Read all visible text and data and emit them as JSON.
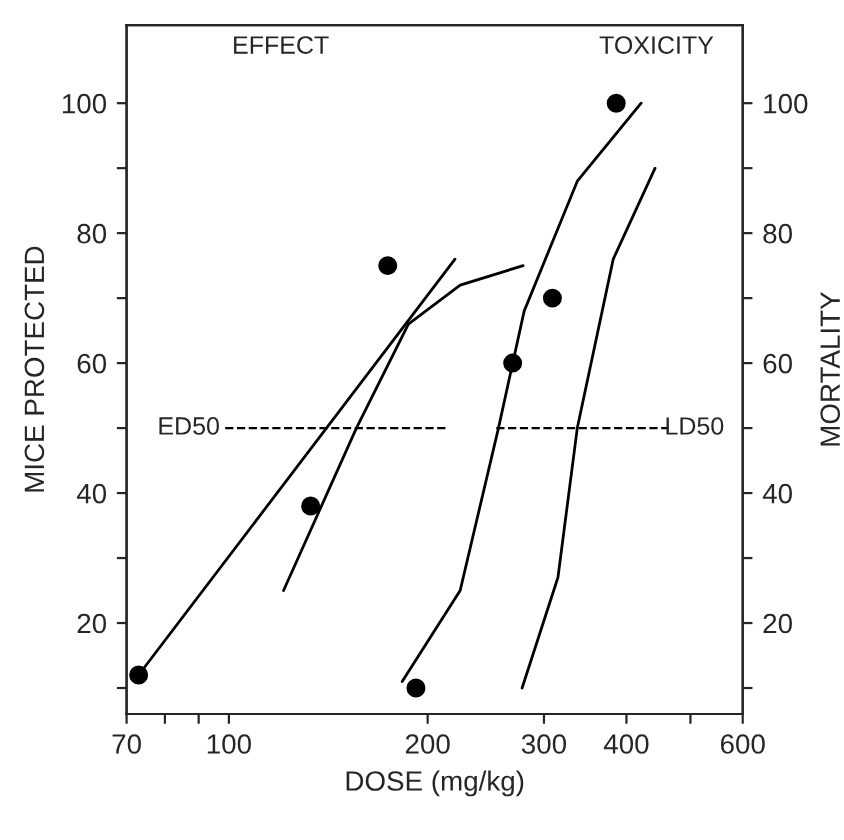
{
  "chart_data": {
    "type": "scatter",
    "xlabel": "DOSE (mg/kg)",
    "ylabel": "MICE PROTECTED",
    "y2label": "MORTALITY",
    "log": "x",
    "grid": false,
    "legend": false,
    "xlim": [
      70,
      600
    ],
    "xticks": [
      70,
      {
        "value": 80,
        "label": null
      },
      {
        "value": 90,
        "label": null
      },
      100,
      200,
      300,
      400,
      {
        "value": 500,
        "label": null
      },
      600
    ],
    "ylim": [
      6,
      112
    ],
    "yticks": [
      {
        "value": 10,
        "label": null
      },
      20,
      {
        "value": 30,
        "label": null
      },
      40,
      {
        "value": 50,
        "label": null
      },
      60,
      {
        "value": 70,
        "label": null
      },
      80,
      {
        "value": 90,
        "label": null
      },
      100
    ],
    "y2lim": [
      6,
      112
    ],
    "y2ticks": [
      {
        "value": 10,
        "label": null
      },
      20,
      {
        "value": 30,
        "label": null
      },
      40,
      {
        "value": 50,
        "label": null
      },
      60,
      {
        "value": 70,
        "label": null
      },
      80,
      {
        "value": 90,
        "label": null
      },
      100
    ],
    "annotations": [
      "EFFECT",
      "TOXICITY",
      "LD50"
    ],
    "ref_lines": [
      {
        "axis": "y",
        "value": 50,
        "label": "ED50",
        "line_style": "dashed",
        "color": "#000000"
      }
    ],
    "series": [
      {
        "marker": "circle",
        "color": "#000000",
        "x": [
          73,
          133,
          174,
          192,
          269,
          309,
          386
        ],
        "values": [
          12,
          38,
          75,
          10,
          60,
          70,
          100
        ]
      },
      {
        "type": "line",
        "marker": "none",
        "line_style": "solid",
        "color": "#000000",
        "x": [
          73,
          220
        ],
        "values": [
          12,
          76
        ]
      },
      {
        "type": "line",
        "marker": "none",
        "line_style": "solid",
        "color": "#000000",
        "x": [
          121,
          156,
          187,
          224,
          279
        ],
        "values": [
          25,
          50,
          66,
          72,
          75
        ]
      },
      {
        "type": "line",
        "marker": "none",
        "line_style": "solid",
        "color": "#000000",
        "x": [
          183,
          224,
          256,
          280,
          337,
          421
        ],
        "values": [
          11,
          25,
          50,
          68,
          88,
          100
        ]
      },
      {
        "type": "line",
        "marker": "none",
        "line_style": "solid",
        "color": "#000000",
        "x": [
          278,
          315,
          337,
          382,
          442
        ],
        "values": [
          10,
          27,
          50,
          76,
          90
        ]
      }
    ]
  }
}
